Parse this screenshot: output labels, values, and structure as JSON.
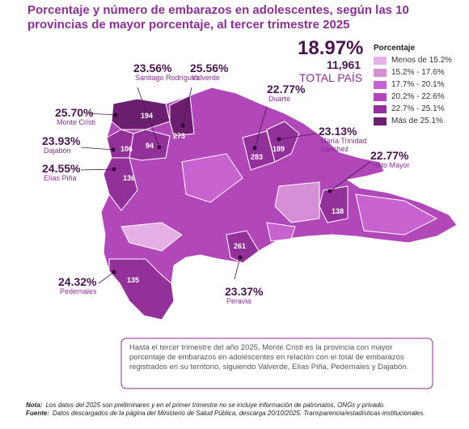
{
  "header": {
    "title": "Porcentaje y número de embarazos en adolescentes, según  las 10 provincias de mayor porcentaje, al tercer trimestre 2025"
  },
  "total": {
    "percent": "18.97%",
    "count": "11,961",
    "label": "TOTAL PAÍS"
  },
  "legend": {
    "title": "Porcentaje",
    "items": [
      {
        "label": "Menos de 15.2%",
        "color": "#e6b0e6"
      },
      {
        "label": "15.2% - 17.6%",
        "color": "#d68fd6"
      },
      {
        "label": "17.7% - 20.1%",
        "color": "#c862cf"
      },
      {
        "label": "20.2% - 22.6%",
        "color": "#b147b8"
      },
      {
        "label": "22.7% - 25.1%",
        "color": "#93309a"
      },
      {
        "label": "Más de 25.1%",
        "color": "#6b1f6e"
      }
    ]
  },
  "provinces": [
    {
      "name": "Santiago Rodríguez",
      "percent": "23.56%",
      "count": "94"
    },
    {
      "name": "Valverde",
      "percent": "25.56%",
      "count": "273"
    },
    {
      "name": "Duarte",
      "percent": "22.77%",
      "count": "283"
    },
    {
      "name": "Monte Cristi",
      "percent": "25.70%",
      "count": "194"
    },
    {
      "name": "María Trinidad Sánchez",
      "percent": "23.13%",
      "count": "189"
    },
    {
      "name": "Dajabón",
      "percent": "23.93%",
      "count": "106"
    },
    {
      "name": "Hato Mayor",
      "percent": "22.77%",
      "count": "138"
    },
    {
      "name": "Elías Piña",
      "percent": "24.55%",
      "count": "136"
    },
    {
      "name": "Pedernales",
      "percent": "24.32%",
      "count": "135"
    },
    {
      "name": "Peravia",
      "percent": "23.37%",
      "count": "261"
    }
  ],
  "summary": "Hasta el tercer trimestre del año 2025, Monte Cristi es la provincia con mayor porcentaje de embarazos en adolescentes en relación con el total de embarazos registrados en su territorio, siguiendo Valverde, Elías Piña, Pedernales y Dajabón.",
  "notes": [
    {
      "label": "Nota:",
      "text": "Los datos del 2025 son preliminares y en el primer trimestre no se incluye información de patronatos, ONGs y privado."
    },
    {
      "label": "Fuente:",
      "text": "Datos descargados de la página del Ministerio de Salud Pública, descarga 20/10/2025. Transparencia/estadísticas-institucionales."
    }
  ]
}
